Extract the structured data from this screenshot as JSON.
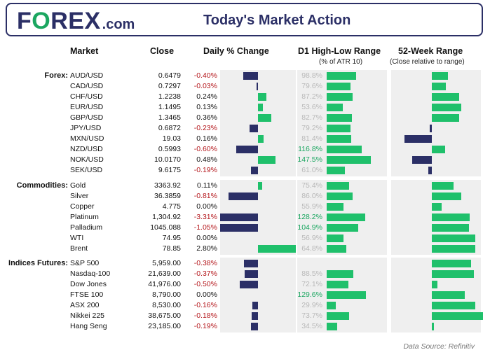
{
  "header": {
    "logo_prefix": "F",
    "logo_o": "O",
    "logo_suffix": "REX",
    "logo_domain": ".com",
    "title": "Today's Market Action"
  },
  "columns": {
    "market": "Market",
    "close": "Close",
    "daily": "Daily % Change",
    "d1": "D1 High-Low Range",
    "d1_sub": "(% of ATR 10)",
    "wk52": "52-Week Range",
    "wk52_sub": "(Close relative to range)"
  },
  "footer": "Data Source: Refinitiv",
  "colors": {
    "positive": "#1fc06b",
    "negative": "#2b2f66",
    "neg_text": "#b4161b",
    "atr_high_text": "#1ba660"
  },
  "chart_data": {
    "type": "table",
    "sections": [
      {
        "label": "Forex:",
        "rows": [
          {
            "market": "AUD/USD",
            "close": "0.6479",
            "pct_text": "-0.40%",
            "pct": -0.4,
            "atr_text": "98.8%",
            "atr": 98.8,
            "wk52": 0.15
          },
          {
            "market": "CAD/USD",
            "close": "0.7297",
            "pct_text": "-0.03%",
            "pct": -0.03,
            "atr_text": "79.6%",
            "atr": 79.6,
            "wk52": 0.13
          },
          {
            "market": "CHF/USD",
            "close": "1.2238",
            "pct_text": "0.24%",
            "pct": 0.24,
            "atr_text": "87.2%",
            "atr": 87.2,
            "wk52": 0.25
          },
          {
            "market": "EUR/USD",
            "close": "1.1495",
            "pct_text": "0.13%",
            "pct": 0.13,
            "atr_text": "53.6%",
            "atr": 53.6,
            "wk52": 0.27
          },
          {
            "market": "GBP/USD",
            "close": "1.3465",
            "pct_text": "0.36%",
            "pct": 0.36,
            "atr_text": "82.7%",
            "atr": 82.7,
            "wk52": 0.25
          },
          {
            "market": "JPY/USD",
            "close": "0.6872",
            "pct_text": "-0.23%",
            "pct": -0.23,
            "atr_text": "79.2%",
            "atr": 79.2,
            "wk52": -0.02
          },
          {
            "market": "MXN/USD",
            "close": "19.03",
            "pct_text": "0.16%",
            "pct": 0.16,
            "atr_text": "81.4%",
            "atr": 81.4,
            "wk52": -0.25
          },
          {
            "market": "NZD/USD",
            "close": "0.5993",
            "pct_text": "-0.60%",
            "pct": -0.6,
            "atr_text": "116.8%",
            "atr": 116.8,
            "wk52": 0.12
          },
          {
            "market": "NOK/USD",
            "close": "10.0170",
            "pct_text": "0.48%",
            "pct": 0.48,
            "atr_text": "147.5%",
            "atr": 147.5,
            "wk52": -0.18
          },
          {
            "market": "SEK/USD",
            "close": "9.6175",
            "pct_text": "-0.19%",
            "pct": -0.19,
            "atr_text": "61.0%",
            "atr": 61.0,
            "wk52": -0.03
          }
        ]
      },
      {
        "label": "Commodities:",
        "rows": [
          {
            "market": "Gold",
            "close": "3363.92",
            "pct_text": "0.11%",
            "pct": 0.11,
            "atr_text": "75.4%",
            "atr": 75.4,
            "wk52": 0.2
          },
          {
            "market": "Silver",
            "close": "36.3859",
            "pct_text": "-0.81%",
            "pct": -0.81,
            "atr_text": "86.0%",
            "atr": 86.0,
            "wk52": 0.27
          },
          {
            "market": "Copper",
            "close": "4.775",
            "pct_text": "0.00%",
            "pct": 0.0,
            "atr_text": "55.9%",
            "atr": 55.9,
            "wk52": 0.09
          },
          {
            "market": "Platinum",
            "close": "1,304.92",
            "pct_text": "-3.31%",
            "pct": -3.31,
            "atr_text": "128.2%",
            "atr": 128.2,
            "wk52": 0.35
          },
          {
            "market": "Palladium",
            "close": "1045.088",
            "pct_text": "-1.05%",
            "pct": -1.05,
            "atr_text": "104.9%",
            "atr": 104.9,
            "wk52": 0.34
          },
          {
            "market": "WTI",
            "close": "74.95",
            "pct_text": "0.00%",
            "pct": 0.0,
            "atr_text": "56.9%",
            "atr": 56.9,
            "wk52": 0.4
          },
          {
            "market": "Brent",
            "close": "78.85",
            "pct_text": "2.80%",
            "pct": 2.8,
            "atr_text": "64.8%",
            "atr": 64.8,
            "wk52": 0.4
          }
        ]
      },
      {
        "label": "Indices Futures:",
        "rows": [
          {
            "market": "S&P 500",
            "close": "5,959.00",
            "pct_text": "-0.38%",
            "pct": -0.38,
            "atr_text": "",
            "atr": 0,
            "wk52": 0.36
          },
          {
            "market": "Nasdaq-100",
            "close": "21,639.00",
            "pct_text": "-0.37%",
            "pct": -0.37,
            "atr_text": "88.5%",
            "atr": 88.5,
            "wk52": 0.39
          },
          {
            "market": "Dow Jones",
            "close": "41,976.00",
            "pct_text": "-0.50%",
            "pct": -0.5,
            "atr_text": "72.1%",
            "atr": 72.1,
            "wk52": 0.05
          },
          {
            "market": "FTSE 100",
            "close": "8,790.00",
            "pct_text": "0.00%",
            "pct": 0.0,
            "atr_text": "129.6%",
            "atr": 129.6,
            "wk52": 0.3
          },
          {
            "market": "ASX 200",
            "close": "8,530.00",
            "pct_text": "-0.16%",
            "pct": -0.16,
            "atr_text": "29.9%",
            "atr": 29.9,
            "wk52": 0.4
          },
          {
            "market": "Nikkei 225",
            "close": "38,675.00",
            "pct_text": "-0.18%",
            "pct": -0.18,
            "atr_text": "73.7%",
            "atr": 73.7,
            "wk52": 0.47
          },
          {
            "market": "Hang Seng",
            "close": "23,185.00",
            "pct_text": "-0.19%",
            "pct": -0.19,
            "atr_text": "34.5%",
            "atr": 34.5,
            "wk52": 0.02
          }
        ]
      }
    ]
  }
}
